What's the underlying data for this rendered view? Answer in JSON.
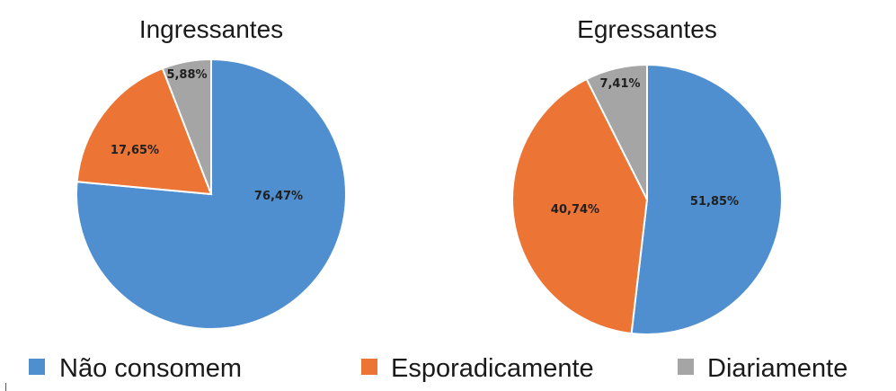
{
  "chart_data": [
    {
      "type": "pie",
      "title": "Ingressantes",
      "categories": [
        "Não consomem",
        "Esporadicamente",
        "Diariamente"
      ],
      "values": [
        76.47,
        17.65,
        5.88
      ],
      "labels": [
        "76,47%",
        "17,65%",
        "5,88%"
      ]
    },
    {
      "type": "pie",
      "title": "Egressantes",
      "categories": [
        "Não consomem",
        "Esporadicamente",
        "Diariamente"
      ],
      "values": [
        51.85,
        40.74,
        7.41
      ],
      "labels": [
        "51,85%",
        "40,74%",
        "7,41%"
      ]
    }
  ],
  "legend": {
    "placement": "bottom",
    "items": [
      {
        "label": "Não consomem",
        "color": "#4f8fd0"
      },
      {
        "label": "Esporadicamente",
        "color": "#ec7434"
      },
      {
        "label": "Diariamente",
        "color": "#a5a5a5"
      }
    ]
  },
  "colors": [
    "#4f8fd0",
    "#ec7434",
    "#a5a5a5"
  ]
}
